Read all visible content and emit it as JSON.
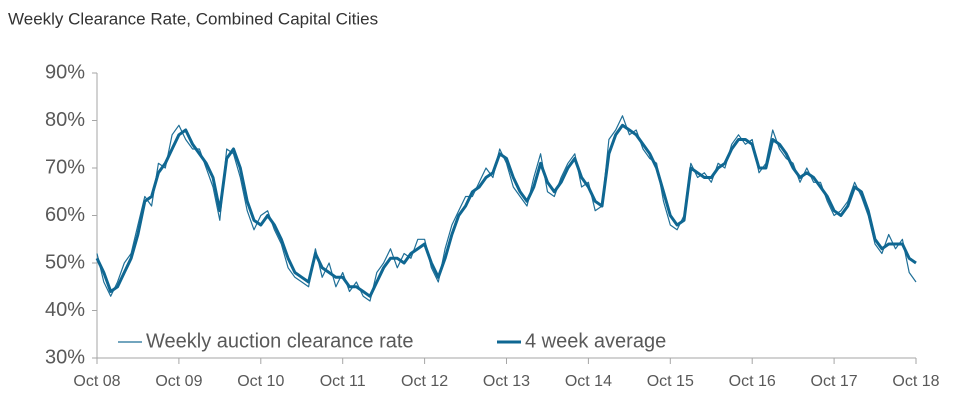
{
  "chart_data": {
    "type": "line",
    "title": "Weekly Clearance Rate, Combined Capital Cities",
    "categories": [
      "Oct 08",
      null,
      null,
      null,
      null,
      null,
      null,
      null,
      null,
      null,
      null,
      null,
      "Oct 09",
      null,
      null,
      null,
      null,
      null,
      null,
      null,
      null,
      null,
      null,
      null,
      "Oct 10",
      null,
      null,
      null,
      null,
      null,
      null,
      null,
      null,
      null,
      null,
      null,
      "Oct 11",
      null,
      null,
      null,
      null,
      null,
      null,
      null,
      null,
      null,
      null,
      null,
      "Oct 12",
      null,
      null,
      null,
      null,
      null,
      null,
      null,
      null,
      null,
      null,
      null,
      "Oct 13",
      null,
      null,
      null,
      null,
      null,
      null,
      null,
      null,
      null,
      null,
      null,
      "Oct 14",
      null,
      null,
      null,
      null,
      null,
      null,
      null,
      null,
      null,
      null,
      null,
      "Oct 15",
      null,
      null,
      null,
      null,
      null,
      null,
      null,
      null,
      null,
      null,
      null,
      "Oct 16",
      null,
      null,
      null,
      null,
      null,
      null,
      null,
      null,
      null,
      null,
      null,
      "Oct 17",
      null,
      null,
      null,
      null,
      null,
      null,
      null,
      null,
      null,
      null,
      null,
      "Oct 18"
    ],
    "series": [
      {
        "name": "Weekly auction clearance rate",
        "color": "#1f6f97",
        "width": 1.2,
        "values": [
          52,
          46,
          43,
          46,
          50,
          52,
          58,
          64,
          62,
          71,
          70,
          77,
          79,
          76,
          74,
          74,
          70,
          66,
          59,
          74,
          73,
          68,
          61,
          57,
          60,
          61,
          57,
          54,
          49,
          47,
          46,
          45,
          53,
          47,
          50,
          45,
          48,
          44,
          46,
          43,
          42,
          48,
          50,
          53,
          49,
          52,
          51,
          55,
          55,
          49,
          46,
          53,
          58,
          61,
          64,
          64,
          67,
          70,
          68,
          74,
          71,
          66,
          64,
          62,
          68,
          73,
          65,
          64,
          68,
          71,
          73,
          66,
          67,
          61,
          62,
          76,
          78,
          81,
          77,
          78,
          74,
          72,
          71,
          63,
          58,
          57,
          60,
          71,
          68,
          69,
          67,
          71,
          70,
          75,
          77,
          75,
          76,
          69,
          71,
          78,
          74,
          72,
          71,
          67,
          70,
          67,
          67,
          63,
          60,
          61,
          63,
          67,
          64,
          60,
          54,
          52,
          56,
          53,
          55,
          48,
          46
        ]
      },
      {
        "name": "4 week average",
        "color": "#0f6792",
        "width": 3,
        "values": [
          51,
          48,
          44,
          45,
          48,
          51,
          56,
          63,
          64,
          69,
          71,
          74,
          77,
          78,
          75,
          73,
          71,
          68,
          61,
          72,
          74,
          70,
          63,
          59,
          58,
          60,
          58,
          55,
          51,
          48,
          47,
          46,
          52,
          49,
          48,
          47,
          47,
          45,
          45,
          44,
          43,
          46,
          49,
          51,
          51,
          50,
          52,
          53,
          54,
          50,
          47,
          51,
          56,
          60,
          62,
          65,
          66,
          68,
          69,
          73,
          72,
          68,
          65,
          63,
          66,
          71,
          67,
          65,
          67,
          70,
          72,
          68,
          66,
          63,
          62,
          73,
          77,
          79,
          78,
          77,
          75,
          73,
          70,
          65,
          60,
          58,
          59,
          70,
          69,
          68,
          68,
          70,
          71,
          74,
          76,
          76,
          75,
          70,
          70,
          76,
          75,
          73,
          70,
          68,
          69,
          68,
          66,
          64,
          61,
          60,
          62,
          66,
          65,
          61,
          55,
          53,
          54,
          54,
          54,
          51,
          50
        ]
      }
    ],
    "ylim": [
      30,
      90
    ],
    "yticks": [
      {
        "value": 30,
        "label": "30%"
      },
      {
        "value": 40,
        "label": "40%"
      },
      {
        "value": 50,
        "label": "50%"
      },
      {
        "value": 60,
        "label": "60%"
      },
      {
        "value": 70,
        "label": "70%"
      },
      {
        "value": 80,
        "label": "80%"
      },
      {
        "value": 90,
        "label": "90%"
      }
    ],
    "grid": false,
    "legend": "bottom-left"
  }
}
